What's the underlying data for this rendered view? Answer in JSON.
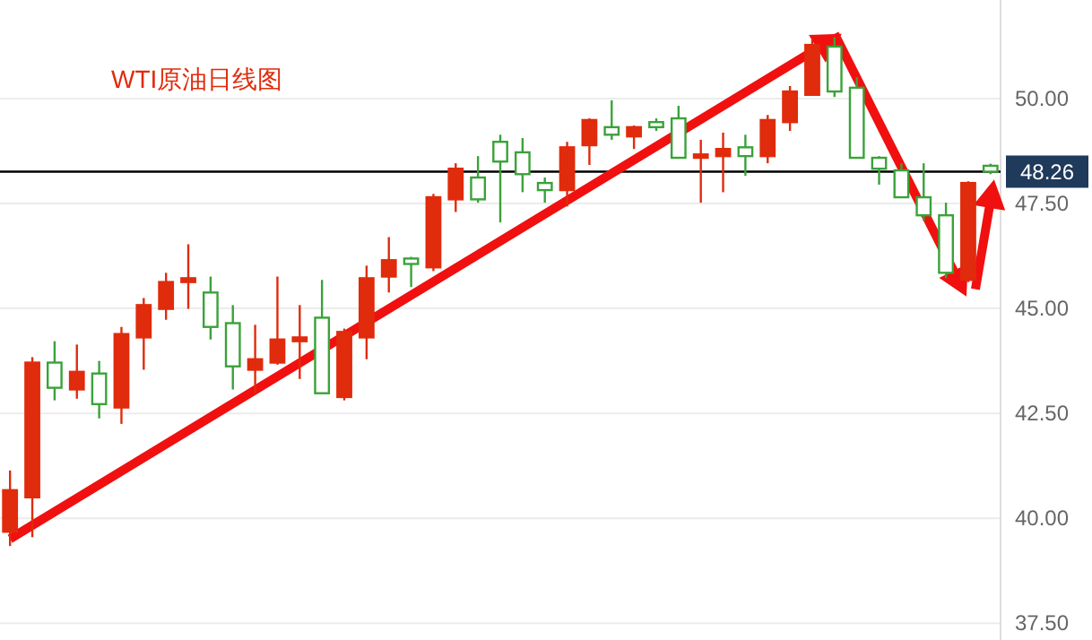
{
  "chart_data": {
    "type": "candlestick",
    "title": "WTI原油日线图",
    "categories": [
      null,
      null,
      null,
      null,
      null,
      null,
      null,
      null,
      null,
      null,
      null,
      null,
      null,
      null,
      null,
      null,
      null,
      null,
      null,
      null,
      null,
      null,
      null,
      null,
      null,
      null,
      null,
      null,
      null,
      null,
      null,
      null,
      null,
      null,
      null,
      null,
      null,
      null,
      null,
      null,
      null,
      null,
      null,
      null,
      null
    ],
    "ohlc": [
      [
        39.68,
        41.14,
        39.34,
        40.67
      ],
      [
        40.5,
        43.84,
        39.55,
        43.71
      ],
      [
        43.71,
        44.22,
        42.81,
        43.11
      ],
      [
        43.07,
        44.14,
        42.85,
        43.49
      ],
      [
        43.45,
        43.75,
        42.38,
        42.72
      ],
      [
        42.64,
        44.56,
        42.25,
        44.39
      ],
      [
        44.31,
        45.25,
        43.54,
        45.08
      ],
      [
        44.99,
        45.85,
        44.73,
        45.63
      ],
      [
        45.63,
        46.53,
        44.99,
        45.72
      ],
      [
        45.38,
        45.76,
        44.26,
        44.56
      ],
      [
        44.65,
        45.08,
        43.07,
        43.62
      ],
      [
        43.54,
        44.61,
        42.98,
        43.79
      ],
      [
        43.71,
        45.76,
        43.66,
        44.26
      ],
      [
        44.22,
        45.08,
        43.32,
        44.31
      ],
      [
        44.78,
        45.68,
        42.98,
        42.98
      ],
      [
        42.89,
        44.52,
        42.81,
        44.44
      ],
      [
        44.31,
        46.02,
        43.79,
        45.72
      ],
      [
        45.76,
        46.7,
        45.38,
        46.15
      ],
      [
        46.19,
        46.23,
        45.51,
        46.06
      ],
      [
        45.98,
        47.73,
        45.89,
        47.65
      ],
      [
        47.6,
        48.46,
        47.3,
        48.33
      ],
      [
        48.12,
        48.63,
        47.52,
        47.6
      ],
      [
        48.97,
        49.14,
        47.05,
        48.5
      ],
      [
        48.72,
        49.06,
        47.77,
        48.2
      ],
      [
        47.99,
        48.12,
        47.52,
        47.82
      ],
      [
        47.82,
        48.97,
        47.43,
        48.84
      ],
      [
        48.89,
        49.53,
        48.42,
        49.49
      ],
      [
        49.32,
        49.96,
        49.02,
        49.14
      ],
      [
        49.1,
        49.36,
        48.8,
        49.32
      ],
      [
        49.44,
        49.53,
        49.23,
        49.32
      ],
      [
        49.53,
        49.83,
        48.59,
        48.59
      ],
      [
        48.59,
        49.02,
        47.52,
        48.67
      ],
      [
        48.63,
        49.19,
        47.77,
        48.8
      ],
      [
        48.84,
        49.14,
        48.16,
        48.63
      ],
      [
        48.63,
        49.61,
        48.46,
        49.49
      ],
      [
        49.44,
        50.3,
        49.23,
        50.17
      ],
      [
        50.09,
        51.41,
        50.09,
        51.28
      ],
      [
        51.24,
        51.46,
        50.04,
        50.17
      ],
      [
        50.26,
        50.51,
        48.59,
        48.59
      ],
      [
        48.59,
        48.63,
        47.95,
        48.33
      ],
      [
        48.29,
        48.46,
        47.65,
        47.65
      ],
      [
        47.65,
        48.46,
        47.09,
        47.22
      ],
      [
        47.22,
        47.52,
        45.72,
        45.85
      ],
      [
        45.68,
        48.03,
        45.63,
        47.99
      ],
      [
        48.4,
        48.45,
        48.2,
        48.26
      ]
    ],
    "colors": [
      "#e02b0c",
      "#e02b0c",
      "#3aa23a",
      "#e02b0c",
      "#3aa23a",
      "#e02b0c",
      "#e02b0c",
      "#e02b0c",
      "#e02b0c",
      "#3aa23a",
      "#3aa23a",
      "#e02b0c",
      "#e02b0c",
      "#e02b0c",
      "#3aa23a",
      "#e02b0c",
      "#e02b0c",
      "#e02b0c",
      "#3aa23a",
      "#e02b0c",
      "#e02b0c",
      "#3aa23a",
      "#3aa23a",
      "#3aa23a",
      "#3aa23a",
      "#e02b0c",
      "#e02b0c",
      "#3aa23a",
      "#e02b0c",
      "#3aa23a",
      "#3aa23a",
      "#e02b0c",
      "#e02b0c",
      "#3aa23a",
      "#e02b0c",
      "#e02b0c",
      "#e02b0c",
      "#3aa23a",
      "#3aa23a",
      "#3aa23a",
      "#3aa23a",
      "#3aa23a",
      "#3aa23a",
      "#e02b0c",
      "#3aa23a"
    ],
    "ylim": [
      37.1,
      52.35
    ],
    "yticks": [
      {
        "value": 37.5,
        "label": "37.50"
      },
      {
        "value": 40,
        "label": "40.00"
      },
      {
        "value": 42.5,
        "label": "42.50"
      },
      {
        "value": 45,
        "label": "45.00"
      },
      {
        "value": 47.5,
        "label": "47.50"
      },
      {
        "value": 50,
        "label": "50.00"
      }
    ],
    "ref_lines": [
      {
        "axis": "y",
        "value": 48.26,
        "label": "48.26",
        "color": "#000000"
      }
    ],
    "grid": "y",
    "tick_labels": "y"
  }
}
